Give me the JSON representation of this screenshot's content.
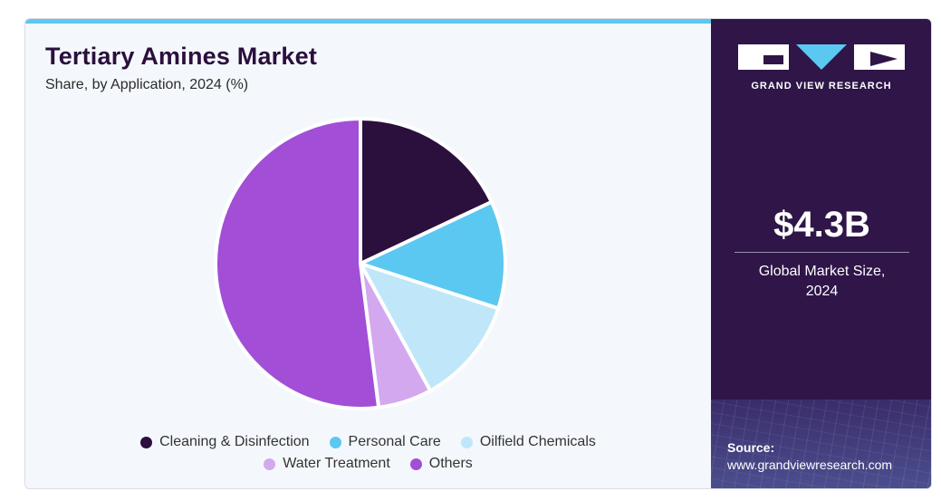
{
  "header": {
    "title": "Tertiary Amines Market",
    "subtitle": "Share, by Application, 2024 (%)"
  },
  "brand": {
    "name": "GRAND VIEW RESEARCH"
  },
  "summary": {
    "value": "$4.3B",
    "label_line1": "Global Market Size,",
    "label_line2": "2024"
  },
  "source": {
    "label": "Source:",
    "url": "www.grandviewresearch.com"
  },
  "colors": {
    "cleaning": "#2b0f3d",
    "personal_care": "#5bc8f2",
    "oilfield": "#bfe7f9",
    "water": "#d4a8ee",
    "others": "#a24ed6",
    "accent_bar": "#5bc8f2",
    "panel": "#2f1548"
  },
  "chart_data": {
    "type": "pie",
    "title": "Tertiary Amines Market",
    "subtitle": "Share, by Application, 2024 (%)",
    "categories": [
      "Cleaning & Disinfection",
      "Personal Care",
      "Oilfield Chemicals",
      "Water Treatment",
      "Others"
    ],
    "values": [
      18,
      12,
      12,
      6,
      52
    ],
    "colors": [
      "#2b0f3d",
      "#5bc8f2",
      "#bfe7f9",
      "#d4a8ee",
      "#a24ed6"
    ],
    "start_angle_deg": 0,
    "direction": "clockwise",
    "legend_position": "bottom"
  }
}
